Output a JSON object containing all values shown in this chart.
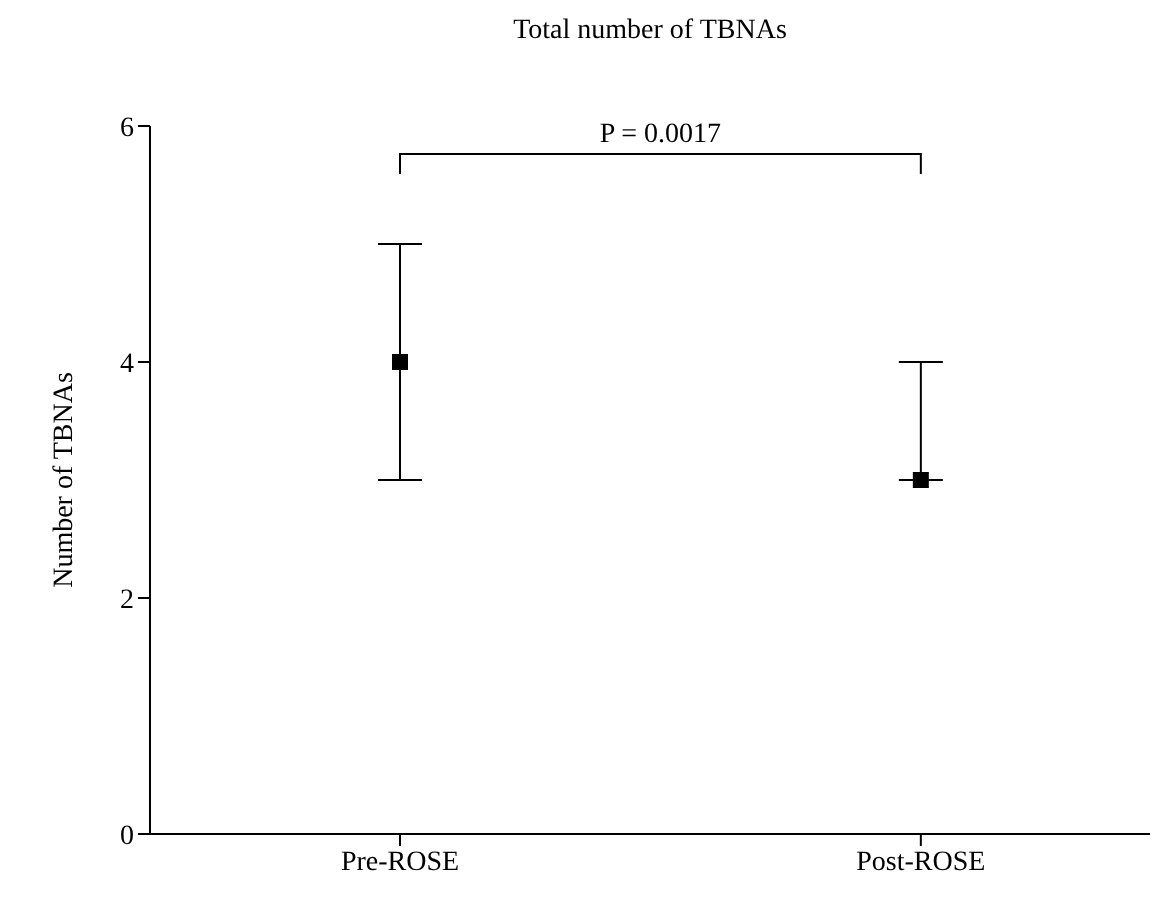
{
  "chart_data": {
    "type": "scatter",
    "title": "Total number of TBNAs",
    "ylabel": "Number of TBNAs",
    "categories": [
      "Pre-ROSE",
      "Post-ROSE"
    ],
    "series": [
      {
        "color": "#000000",
        "values": [
          4,
          3
        ],
        "errors": [
          [
            3,
            5
          ],
          [
            3,
            4
          ]
        ]
      }
    ],
    "ylim": [
      0,
      6
    ],
    "yticks": [
      0,
      2,
      4,
      6
    ],
    "marker": "square",
    "grid": false,
    "annotations": [
      "P = 0.0017"
    ]
  }
}
